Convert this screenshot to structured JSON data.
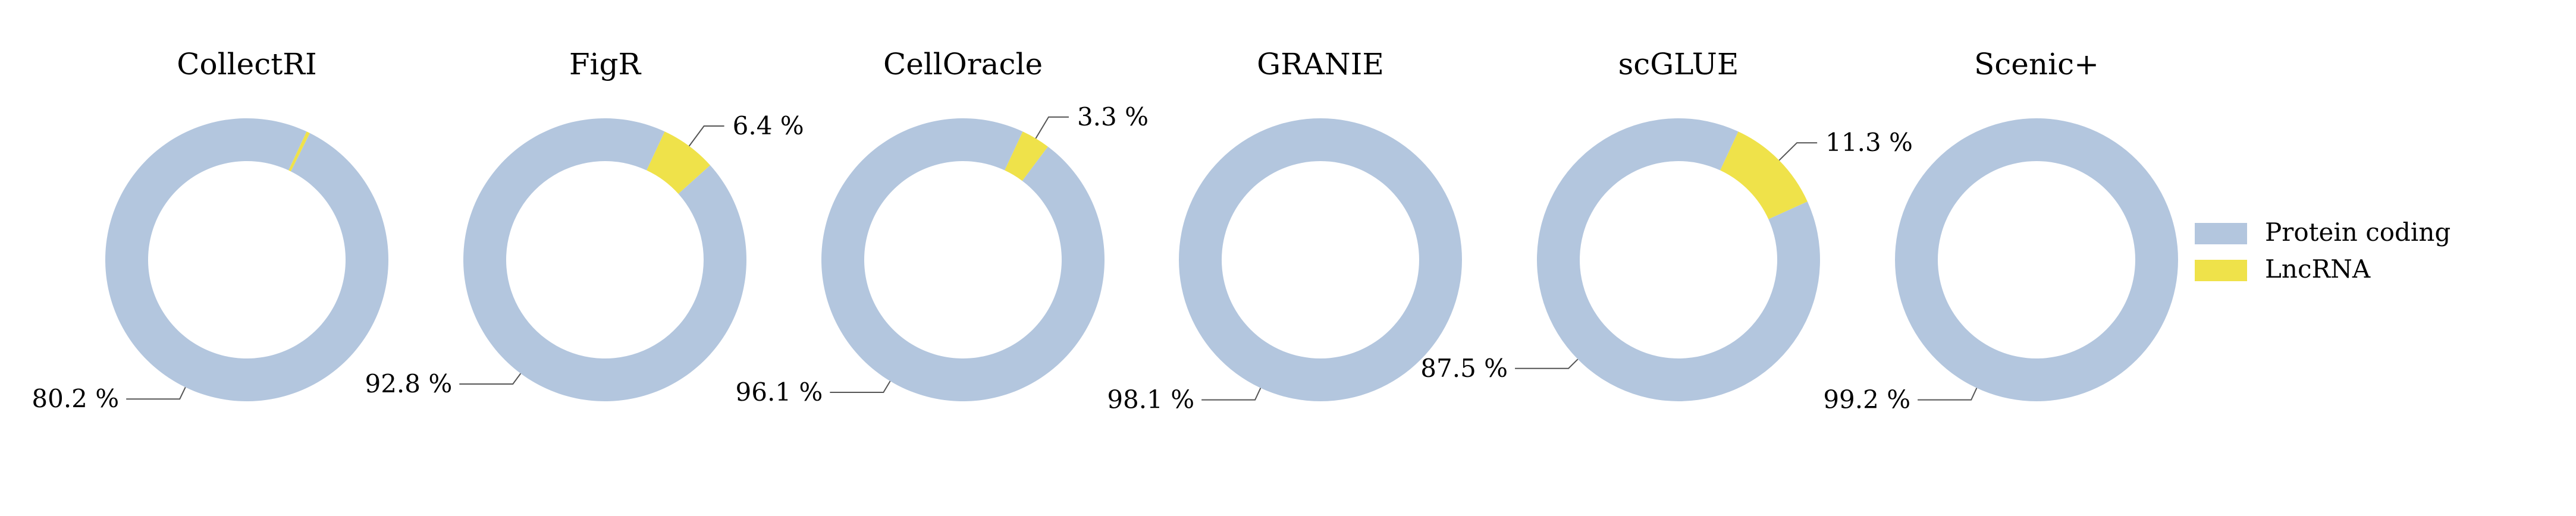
{
  "chart_data": {
    "type": "pie",
    "legend": {
      "placement": "right",
      "entries": [
        {
          "name": "Protein coding",
          "color": "#b3c6de"
        },
        {
          "name": "LncRNA",
          "color": "#efe24a"
        }
      ]
    },
    "charts": [
      {
        "title": "CollectRI",
        "slices": [
          {
            "name": "Protein coding",
            "value": 80.2,
            "label": "80.2 %"
          },
          {
            "name": "LncRNA",
            "value": 0.4,
            "label": ""
          }
        ]
      },
      {
        "title": "FigR",
        "slices": [
          {
            "name": "Protein coding",
            "value": 92.8,
            "label": "92.8 %"
          },
          {
            "name": "LncRNA",
            "value": 6.4,
            "label": "6.4 %"
          }
        ]
      },
      {
        "title": "CellOracle",
        "slices": [
          {
            "name": "Protein coding",
            "value": 96.1,
            "label": "96.1 %"
          },
          {
            "name": "LncRNA",
            "value": 3.3,
            "label": "3.3 %"
          }
        ]
      },
      {
        "title": "GRANIE",
        "slices": [
          {
            "name": "Protein coding",
            "value": 98.1,
            "label": "98.1 %"
          },
          {
            "name": "LncRNA",
            "value": 0,
            "label": ""
          }
        ]
      },
      {
        "title": "scGLUE",
        "slices": [
          {
            "name": "Protein coding",
            "value": 87.5,
            "label": "87.5 %"
          },
          {
            "name": "LncRNA",
            "value": 11.3,
            "label": "11.3 %"
          }
        ]
      },
      {
        "title": "Scenic+",
        "slices": [
          {
            "name": "Protein coding",
            "value": 99.2,
            "label": "99.2 %"
          },
          {
            "name": "LncRNA",
            "value": 0,
            "label": ""
          }
        ]
      }
    ]
  }
}
